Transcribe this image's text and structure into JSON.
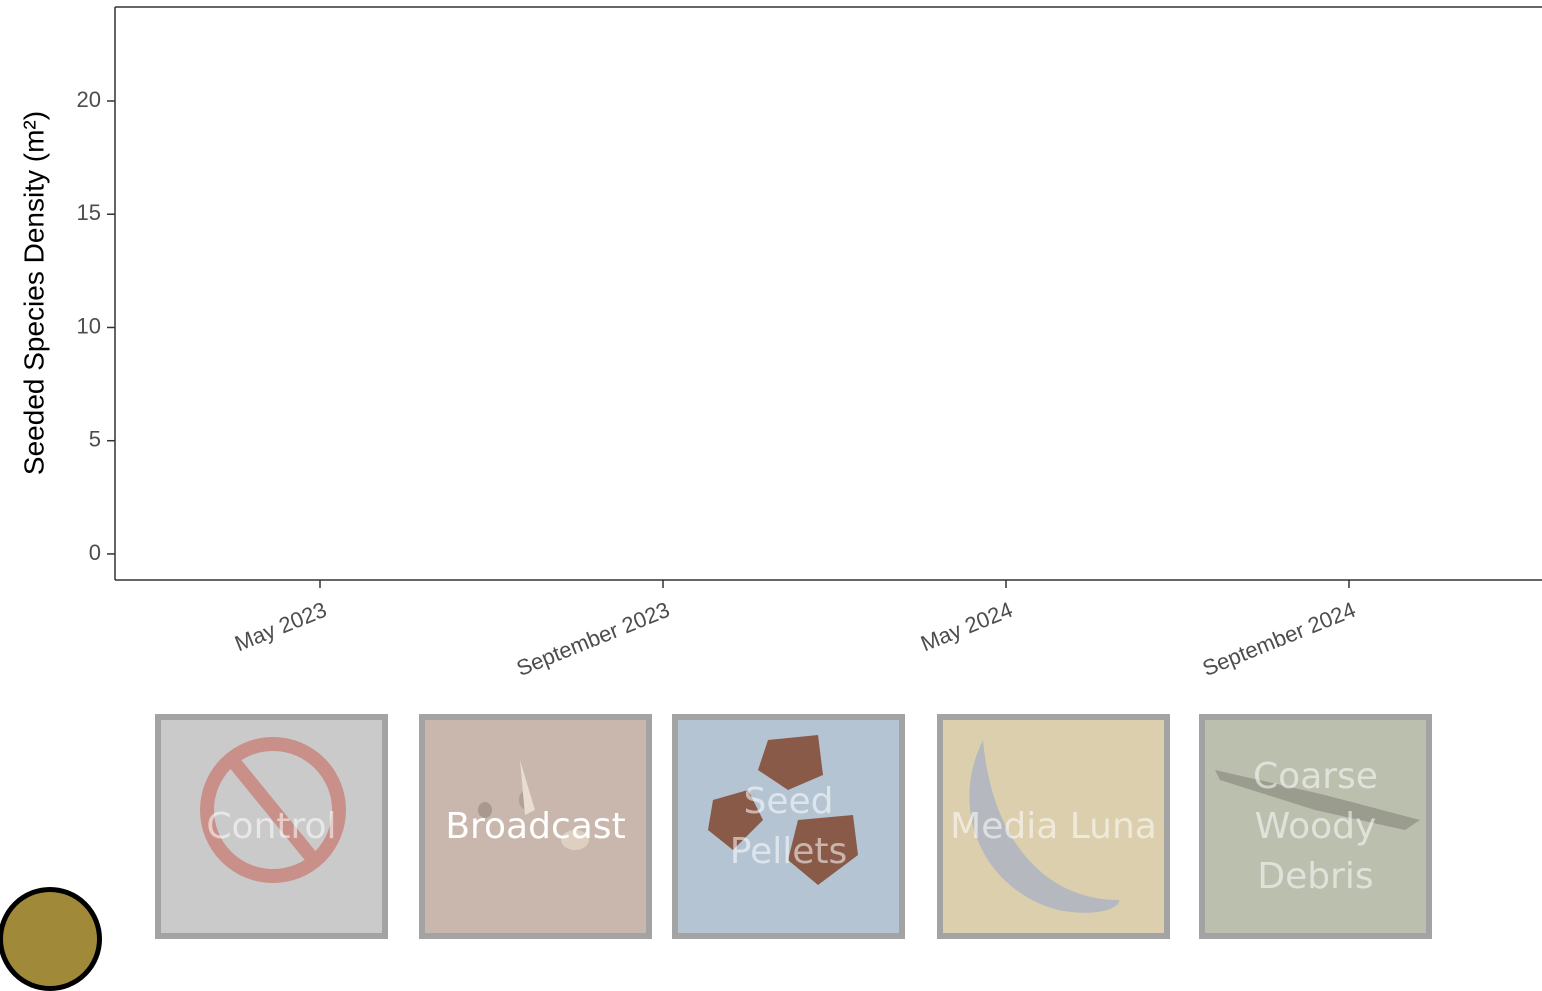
{
  "chart_data": {
    "type": "line",
    "y_label": "Seeded Species Density (m²)",
    "categories": [
      "May 2023",
      "September 2023",
      "May 2024",
      "September 2024"
    ],
    "series": [],
    "ylim": [
      -1.15,
      24.15
    ],
    "yticks": [
      0,
      5,
      10,
      15,
      20
    ],
    "grid": false
  },
  "buttons": [
    {
      "label": "Control",
      "color": "#cacaca",
      "active": false
    },
    {
      "label": "Broadcast",
      "color": "#c9b6ac",
      "active": true
    },
    {
      "label": "Seed Pellets",
      "color": "#b4c4d2",
      "active": false
    },
    {
      "label": "Media Luna",
      "color": "#dccfae",
      "active": false
    },
    {
      "label": "Coarse Woody Debris",
      "color": "#bbbfae",
      "active": false
    }
  ]
}
